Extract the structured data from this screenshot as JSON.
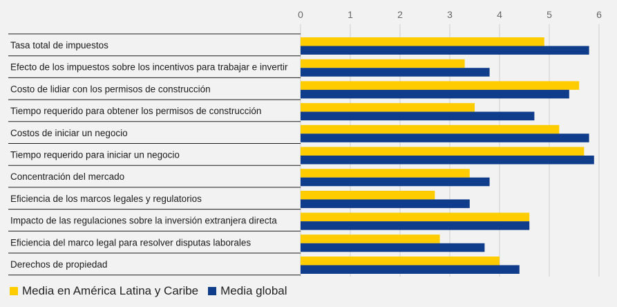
{
  "chart_data": {
    "type": "bar",
    "orientation": "horizontal",
    "categories": [
      "Tasa total de impuestos",
      "Efecto de los impuestos sobre los incentivos para trabajar e invertir",
      "Costo de lidiar con los permisos de construcción",
      "Tiempo requerido para obtener los permisos de construcción",
      "Costos de iniciar un negocio",
      "Tiempo requerido para iniciar un negocio",
      "Concentración del mercado",
      "Eficiencia de los marcos legales y regulatorios",
      "Impacto de las regulaciones sobre la inversión extranjera directa",
      "Eficiencia del marco legal para resolver disputas laborales",
      "Derechos de propiedad"
    ],
    "series": [
      {
        "name": "Media en América Latina y Caribe",
        "color": "#ffcc00",
        "values": [
          4.9,
          3.3,
          5.6,
          3.5,
          5.2,
          5.7,
          3.4,
          2.7,
          4.6,
          2.8,
          4.0
        ]
      },
      {
        "name": "Media global",
        "color": "#0f3d8c",
        "values": [
          5.8,
          3.8,
          5.4,
          4.7,
          5.8,
          5.9,
          3.8,
          3.4,
          4.6,
          3.7,
          4.4
        ]
      }
    ],
    "xlim": [
      0,
      6
    ],
    "xticks": [
      "0",
      "1",
      "2",
      "3",
      "4",
      "5",
      "6"
    ],
    "xaxis_position": "top",
    "grid": true,
    "legend_position": "bottom-left",
    "title": "",
    "xlabel": "",
    "ylabel": ""
  }
}
